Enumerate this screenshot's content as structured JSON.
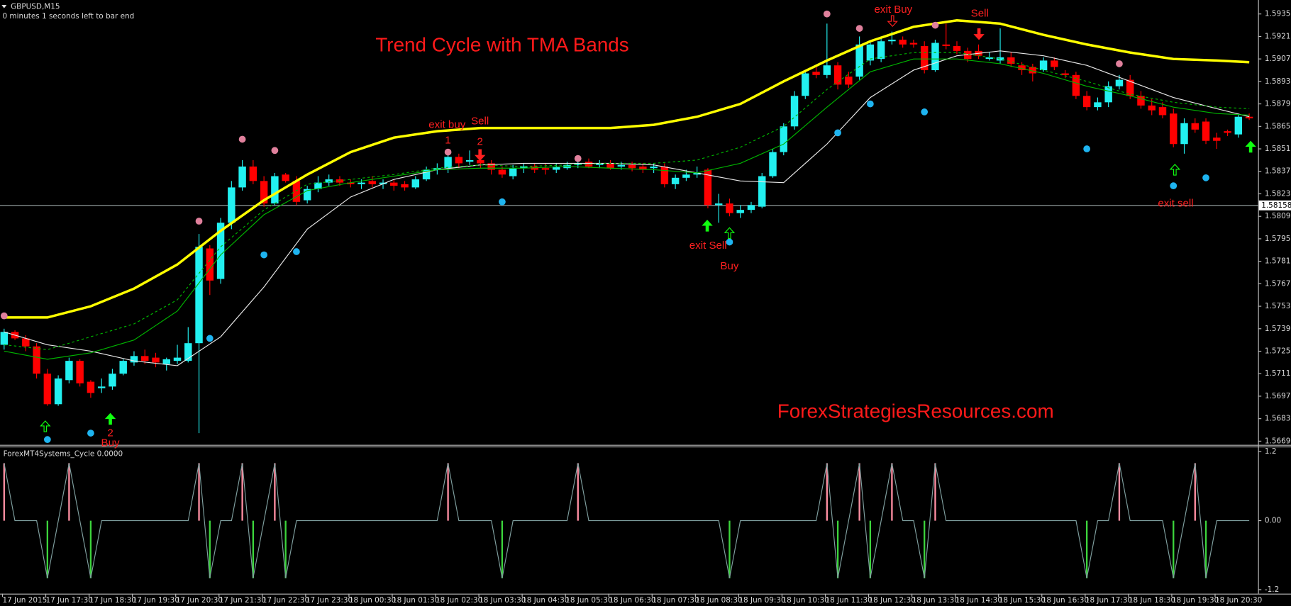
{
  "chart_data": [
    {
      "type": "candlestick",
      "title": "Trend Cycle with TMA Bands",
      "symbol": "GBPUSD,M15",
      "status": "0 minutes 1 seconds left to bar end",
      "watermark": "ForexStrategiesResources.com",
      "categories": [
        "17 Jun 2015",
        null,
        null,
        null,
        "17 Jun 17:30",
        null,
        null,
        null,
        "17 Jun 18:30",
        null,
        null,
        null,
        "17 Jun 19:30",
        null,
        null,
        null,
        "17 Jun 20:30",
        null,
        null,
        null,
        "17 Jun 21:30",
        null,
        null,
        null,
        "17 Jun 22:30",
        null,
        null,
        null,
        "17 Jun 23:30",
        null,
        null,
        null,
        "18 Jun 00:30",
        null,
        null,
        null,
        "18 Jun 01:30",
        null,
        null,
        null,
        "18 Jun 02:30",
        null,
        null,
        null,
        "18 Jun 03:30",
        null,
        null,
        null,
        "18 Jun 04:30",
        null,
        null,
        null,
        "18 Jun 05:30",
        null,
        null,
        null,
        "18 Jun 06:30",
        null,
        null,
        null,
        "18 Jun 07:30",
        null,
        null,
        null,
        "18 Jun 08:30",
        null,
        null,
        null,
        "18 Jun 09:30",
        null,
        null,
        null,
        "18 Jun 10:30",
        null,
        null,
        null,
        "18 Jun 11:30",
        null,
        null,
        null,
        "18 Jun 12:30",
        null,
        null,
        null,
        "18 Jun 13:30",
        null,
        null,
        null,
        "18 Jun 14:30",
        null,
        null,
        null,
        "18 Jun 15:30",
        null,
        null,
        null,
        "18 Jun 16:30",
        null,
        null,
        null,
        "18 Jun 17:30",
        null,
        null,
        null,
        "18 Jun 18:30",
        null,
        null,
        null,
        "18 Jun 19:30",
        null,
        null,
        null,
        "18 Jun 20:30",
        null,
        null,
        null
      ],
      "open": [
        1.5729,
        1.5737,
        1.5733,
        1.5728,
        1.5711,
        1.5692,
        1.5707,
        1.5719,
        1.5706,
        1.5702,
        1.5703,
        1.5711,
        1.5718,
        1.5722,
        1.5721,
        1.5717,
        1.5719,
        1.5719,
        1.573,
        1.5789,
        1.577,
        1.5805,
        1.5827,
        1.584,
        1.5831,
        1.5817,
        1.5835,
        1.5831,
        1.5819,
        1.5826,
        1.583,
        1.5832,
        1.583,
        1.5829,
        1.5831,
        1.5829,
        1.583,
        1.5829,
        1.5827,
        1.5832,
        1.5838,
        1.5839,
        1.5846,
        1.5843,
        1.5844,
        1.5842,
        1.5838,
        1.5834,
        1.5839,
        1.584,
        1.5839,
        1.5838,
        1.5839,
        1.5841,
        1.5843,
        1.5841,
        1.5842,
        1.584,
        1.5841,
        1.584,
        1.5839,
        1.584,
        1.5829,
        1.5833,
        1.5835,
        1.5838,
        1.5816,
        1.5817,
        1.5811,
        1.5813,
        1.5815,
        1.5834,
        1.5849,
        1.5865,
        1.5884,
        1.5899,
        1.5897,
        1.5903,
        1.5896,
        1.5896,
        1.5906,
        1.5907,
        1.5918,
        1.5919,
        1.5917,
        1.5915,
        1.59,
        1.5916,
        1.5915,
        1.5912,
        1.5912,
        1.5907,
        1.5906,
        1.5908,
        1.5903,
        1.5902,
        1.59,
        1.5906,
        1.5898,
        1.5897,
        1.5884,
        1.5877,
        1.588,
        1.589,
        1.5894,
        1.5884,
        1.5878,
        1.5877,
        1.5873,
        1.5854,
        1.5867,
        1.5868,
        1.5858,
        1.5862,
        1.586,
        1.5871
      ],
      "high": [
        1.5739,
        1.5738,
        1.5735,
        1.573,
        1.5714,
        1.571,
        1.5721,
        1.572,
        1.5707,
        1.5708,
        1.5714,
        1.572,
        1.5725,
        1.5726,
        1.5724,
        1.5721,
        1.5729,
        1.574,
        1.5798,
        1.5791,
        1.5808,
        1.5831,
        1.5844,
        1.5844,
        1.5834,
        1.5836,
        1.5836,
        1.5834,
        1.5828,
        1.5834,
        1.5835,
        1.5834,
        1.5832,
        1.5832,
        1.5834,
        1.5832,
        1.5832,
        1.5831,
        1.5834,
        1.584,
        1.5842,
        1.5849,
        1.5848,
        1.585,
        1.5848,
        1.5844,
        1.584,
        1.5841,
        1.5842,
        1.5842,
        1.5842,
        1.5842,
        1.5843,
        1.5844,
        1.5845,
        1.5844,
        1.5844,
        1.5843,
        1.5843,
        1.5842,
        1.5842,
        1.5842,
        1.5835,
        1.5838,
        1.584,
        1.5839,
        1.5823,
        1.582,
        1.5816,
        1.5818,
        1.5836,
        1.5851,
        1.5867,
        1.5887,
        1.59,
        1.5902,
        1.5929,
        1.5905,
        1.5899,
        1.5921,
        1.5918,
        1.5921,
        1.5924,
        1.5921,
        1.5919,
        1.5918,
        1.5919,
        1.5929,
        1.5918,
        1.5914,
        1.5916,
        1.5911,
        1.5926,
        1.5911,
        1.5905,
        1.5904,
        1.5908,
        1.5908,
        1.59,
        1.5899,
        1.5887,
        1.5883,
        1.5893,
        1.5897,
        1.5897,
        1.5887,
        1.5882,
        1.588,
        1.5876,
        1.587,
        1.587,
        1.587,
        1.5861,
        1.5863,
        1.5873,
        1.5873
      ],
      "low": [
        1.5726,
        1.5732,
        1.5725,
        1.5708,
        1.5691,
        1.5691,
        1.5705,
        1.5703,
        1.5696,
        1.5699,
        1.5701,
        1.571,
        1.5716,
        1.5717,
        1.5715,
        1.5713,
        1.5717,
        1.5718,
        1.5674,
        1.576,
        1.5767,
        1.5801,
        1.5825,
        1.5829,
        1.5815,
        1.5816,
        1.583,
        1.5816,
        1.5817,
        1.5824,
        1.5828,
        1.5828,
        1.5827,
        1.5826,
        1.5827,
        1.5826,
        1.5825,
        1.5825,
        1.5826,
        1.5831,
        1.5835,
        1.5836,
        1.5839,
        1.5841,
        1.5839,
        1.5835,
        1.5833,
        1.5832,
        1.5836,
        1.5836,
        1.5835,
        1.5836,
        1.5838,
        1.5839,
        1.5839,
        1.5839,
        1.5838,
        1.5838,
        1.5837,
        1.5836,
        1.5836,
        1.5827,
        1.5826,
        1.5831,
        1.5833,
        1.5814,
        1.5805,
        1.5809,
        1.5808,
        1.5811,
        1.5814,
        1.5833,
        1.5847,
        1.5863,
        1.5882,
        1.5895,
        1.5895,
        1.5888,
        1.5889,
        1.5894,
        1.5903,
        1.5905,
        1.5916,
        1.5914,
        1.5914,
        1.5898,
        1.5899,
        1.5913,
        1.591,
        1.5905,
        1.5907,
        1.5906,
        1.5904,
        1.5902,
        1.5897,
        1.5893,
        1.5899,
        1.59,
        1.5895,
        1.5882,
        1.5875,
        1.5875,
        1.5877,
        1.5888,
        1.5882,
        1.5876,
        1.5872,
        1.587,
        1.5852,
        1.5848,
        1.5861,
        1.5854,
        1.5851,
        1.5859,
        1.5858,
        1.5869
      ],
      "close": [
        1.5737,
        1.5733,
        1.5728,
        1.5711,
        1.5692,
        1.5708,
        1.5719,
        1.5705,
        1.5699,
        1.5703,
        1.5711,
        1.5719,
        1.5722,
        1.5719,
        1.5718,
        1.572,
        1.5721,
        1.573,
        1.579,
        1.5769,
        1.5805,
        1.5827,
        1.584,
        1.5831,
        1.5817,
        1.5834,
        1.5831,
        1.5818,
        1.5826,
        1.583,
        1.5832,
        1.583,
        1.5829,
        1.583,
        1.5829,
        1.583,
        1.5828,
        1.5827,
        1.5832,
        1.5838,
        1.5839,
        1.5846,
        1.5842,
        1.5844,
        1.5842,
        1.5838,
        1.5835,
        1.5839,
        1.584,
        1.5838,
        1.5838,
        1.584,
        1.5841,
        1.5842,
        1.584,
        1.5842,
        1.5839,
        1.5841,
        1.5839,
        1.5838,
        1.584,
        1.5829,
        1.5833,
        1.5835,
        1.5836,
        1.5816,
        1.5817,
        1.5811,
        1.5813,
        1.5816,
        1.5834,
        1.5849,
        1.5865,
        1.5884,
        1.5898,
        1.5897,
        1.5903,
        1.5891,
        1.5891,
        1.5916,
        1.5916,
        1.5918,
        1.5919,
        1.5916,
        1.5916,
        1.59,
        1.5917,
        1.5915,
        1.5912,
        1.5907,
        1.5909,
        1.5908,
        1.5908,
        1.5904,
        1.59,
        1.5898,
        1.5906,
        1.5902,
        1.5897,
        1.5884,
        1.5877,
        1.588,
        1.589,
        1.5894,
        1.5884,
        1.5878,
        1.5875,
        1.5872,
        1.5854,
        1.5867,
        1.5863,
        1.5856,
        1.5856,
        1.5861,
        1.5871,
        1.587
      ],
      "up_color": "#22f0f0",
      "down_color": "#ff0000",
      "ylim": [
        1.56667,
        1.59437
      ],
      "yticks": [
        {
          "value": 1.5935,
          "label": "1.59350"
        },
        {
          "value": 1.5921,
          "label": "1.59210"
        },
        {
          "value": 1.5907,
          "label": "1.59070"
        },
        {
          "value": 1.5893,
          "label": "1.58930"
        },
        {
          "value": 1.5879,
          "label": "1.58790"
        },
        {
          "value": 1.5865,
          "label": "1.58650"
        },
        {
          "value": 1.5851,
          "label": "1.58510"
        },
        {
          "value": 1.5837,
          "label": "1.58370"
        },
        {
          "value": 1.5823,
          "label": "1.58230"
        },
        {
          "value": 1.5809,
          "label": "1.58090"
        },
        {
          "value": 1.5795,
          "label": "1.57950"
        },
        {
          "value": 1.5781,
          "label": "1.57810"
        },
        {
          "value": 1.5767,
          "label": "1.57670"
        },
        {
          "value": 1.5753,
          "label": "1.57530"
        },
        {
          "value": 1.5739,
          "label": "1.57390"
        },
        {
          "value": 1.5725,
          "label": "1.57250"
        },
        {
          "value": 1.5711,
          "label": "1.57110"
        },
        {
          "value": 1.5697,
          "label": "1.56970"
        },
        {
          "value": 1.5683,
          "label": "1.56830"
        },
        {
          "value": 1.5669,
          "label": "1.56690"
        }
      ],
      "current_price": 1.58158,
      "lines": [
        {
          "color": "#ffff00",
          "width": 3,
          "x": [
            0,
            4,
            8,
            12,
            16,
            20,
            24,
            28,
            32,
            36,
            40,
            44,
            48,
            52,
            56,
            60,
            64,
            68,
            72,
            76,
            80,
            84,
            88,
            92,
            96,
            100,
            104,
            108,
            112,
            115
          ],
          "values": [
            1.5746,
            1.5746,
            1.5753,
            1.5764,
            1.5779,
            1.58,
            1.5819,
            1.5835,
            1.5849,
            1.5858,
            1.5862,
            1.5864,
            1.5864,
            1.5864,
            1.5864,
            1.5866,
            1.5871,
            1.5879,
            1.5893,
            1.5906,
            1.5918,
            1.5927,
            1.5931,
            1.5929,
            1.5922,
            1.5916,
            1.5911,
            1.5907,
            1.5906,
            1.5905
          ]
        },
        {
          "color": "#e8e8e8",
          "width": 1,
          "x": [
            0,
            4,
            8,
            12,
            16,
            20,
            24,
            28,
            32,
            36,
            40,
            44,
            48,
            52,
            56,
            60,
            64,
            68,
            72,
            76,
            80,
            84,
            88,
            92,
            96,
            100,
            104,
            108,
            112,
            115
          ],
          "values": [
            1.5737,
            1.5729,
            1.5725,
            1.5719,
            1.5716,
            1.5734,
            1.5765,
            1.5801,
            1.5821,
            1.5832,
            1.5838,
            1.5841,
            1.5842,
            1.5842,
            1.5842,
            1.5841,
            1.5836,
            1.5831,
            1.583,
            1.5854,
            1.5883,
            1.59,
            1.5909,
            1.5912,
            1.5909,
            1.5903,
            1.5893,
            1.5883,
            1.5876,
            1.5871
          ]
        },
        {
          "color": "#00b400",
          "width": 1,
          "x": [
            0,
            4,
            8,
            12,
            16,
            20,
            24,
            28,
            32,
            36,
            40,
            44,
            48,
            52,
            56,
            60,
            64,
            68,
            72,
            76,
            80,
            84,
            88,
            92,
            96,
            100,
            104,
            108,
            112,
            115
          ],
          "values": [
            1.5725,
            1.572,
            1.5724,
            1.5732,
            1.575,
            1.5785,
            1.581,
            1.5825,
            1.583,
            1.5834,
            1.5838,
            1.5839,
            1.5839,
            1.584,
            1.5839,
            1.5838,
            1.5836,
            1.5842,
            1.5854,
            1.5877,
            1.5899,
            1.5907,
            1.5907,
            1.5904,
            1.5898,
            1.589,
            1.5884,
            1.5877,
            1.5873,
            1.5872
          ]
        },
        {
          "color": "#00b400",
          "width": 1,
          "dashed": true,
          "x": [
            0,
            4,
            8,
            12,
            16,
            20,
            24,
            28,
            32,
            36,
            40,
            44,
            48,
            52,
            56,
            60,
            64,
            68,
            72,
            76,
            80,
            84,
            88,
            92,
            96,
            100,
            104,
            108,
            112,
            115
          ],
          "values": [
            1.5729,
            1.5726,
            1.5734,
            1.5742,
            1.5757,
            1.579,
            1.5813,
            1.5829,
            1.5832,
            1.5835,
            1.5839,
            1.5841,
            1.584,
            1.5841,
            1.5842,
            1.5842,
            1.5844,
            1.5852,
            1.5865,
            1.5888,
            1.5907,
            1.5911,
            1.5911,
            1.5907,
            1.59,
            1.5893,
            1.5885,
            1.588,
            1.5877,
            1.5876
          ]
        }
      ],
      "dots": [
        {
          "color": "#e0809c",
          "x": [
            0,
            18,
            22,
            25,
            41,
            53,
            76,
            79,
            86,
            103
          ],
          "values": [
            1.5747,
            1.5806,
            1.5857,
            1.585,
            1.5849,
            1.5845,
            1.5935,
            1.5926,
            1.5928,
            1.5904
          ]
        },
        {
          "color": "#1eb4f0",
          "x": [
            4,
            8,
            19,
            24,
            27,
            46,
            67,
            77,
            80,
            85,
            100,
            108,
            111
          ],
          "values": [
            1.567,
            1.5674,
            1.5733,
            1.5785,
            1.5787,
            1.5818,
            1.5793,
            1.5861,
            1.5879,
            1.5874,
            1.5851,
            1.5828,
            1.5833
          ]
        }
      ],
      "annotations": [
        "exit buy",
        "1",
        "Sell",
        "2",
        "exit Sell",
        "Buy",
        "exit Buy",
        "Sell",
        "exit sell",
        "2",
        "Buy"
      ]
    },
    {
      "type": "line",
      "label": "ForexMT4Systems_Cycle  0.0000",
      "values": [
        1,
        0,
        0,
        0,
        -1,
        0,
        1,
        0,
        -1,
        0,
        0,
        0,
        0,
        0,
        0,
        0,
        0,
        0,
        1,
        -1,
        0,
        0,
        1,
        -1,
        0,
        1,
        -1,
        0,
        0,
        0,
        0,
        0,
        0,
        0,
        0,
        0,
        0,
        0,
        0,
        0,
        0,
        1,
        0,
        0,
        0,
        0,
        -1,
        0,
        0,
        0,
        0,
        0,
        0,
        1,
        0,
        0,
        0,
        0,
        0,
        0,
        0,
        0,
        0,
        0,
        0,
        0,
        0,
        -1,
        0,
        0,
        0,
        0,
        0,
        0,
        0,
        0,
        1,
        -1,
        0,
        1,
        -1,
        0,
        1,
        0,
        0,
        -1,
        1,
        0,
        0,
        0,
        0,
        0,
        0,
        0,
        0,
        0,
        0,
        0,
        0,
        0,
        -1,
        0,
        0,
        1,
        0,
        0,
        0,
        0,
        -1,
        0,
        1,
        -1,
        0,
        0,
        0,
        0
      ],
      "line_color": "#7f9f9f",
      "peak_color": "#ff8fa3",
      "trough_color": "#3cd43c",
      "ylim": [
        -1.27,
        1.29
      ],
      "yticks": [
        1.2,
        {
          "value": 0,
          "label": "0.00"
        },
        -1.2
      ]
    }
  ]
}
